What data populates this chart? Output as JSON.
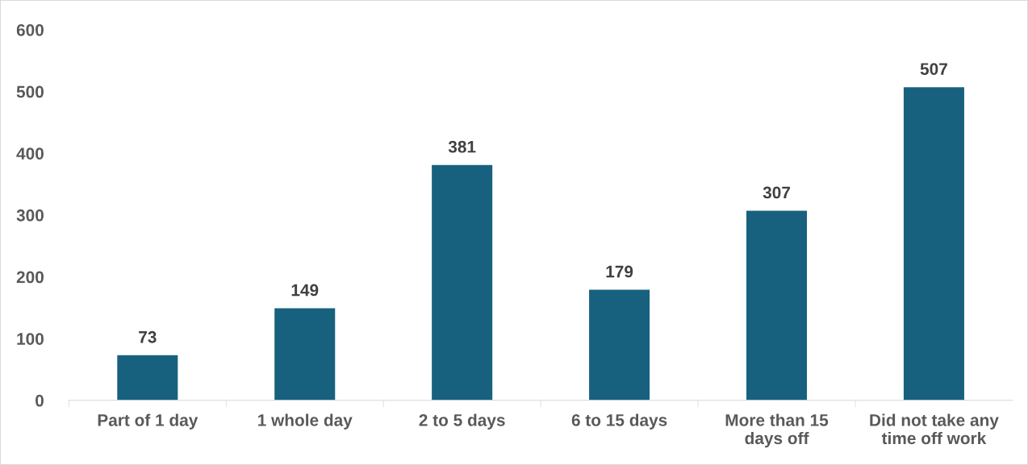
{
  "chart_data": {
    "type": "bar",
    "categories": [
      "Part of 1 day",
      "1 whole day",
      "2 to 5 days",
      "6 to 15 days",
      "More than 15\ndays off",
      "Did not take any\ntime off work"
    ],
    "values": [
      73,
      149,
      381,
      179,
      307,
      507
    ],
    "color": "#17617f",
    "ylim": [
      0,
      600
    ],
    "yticks": [
      0,
      100,
      200,
      300,
      400,
      500,
      600
    ],
    "grid": false,
    "data_labels": true
  }
}
